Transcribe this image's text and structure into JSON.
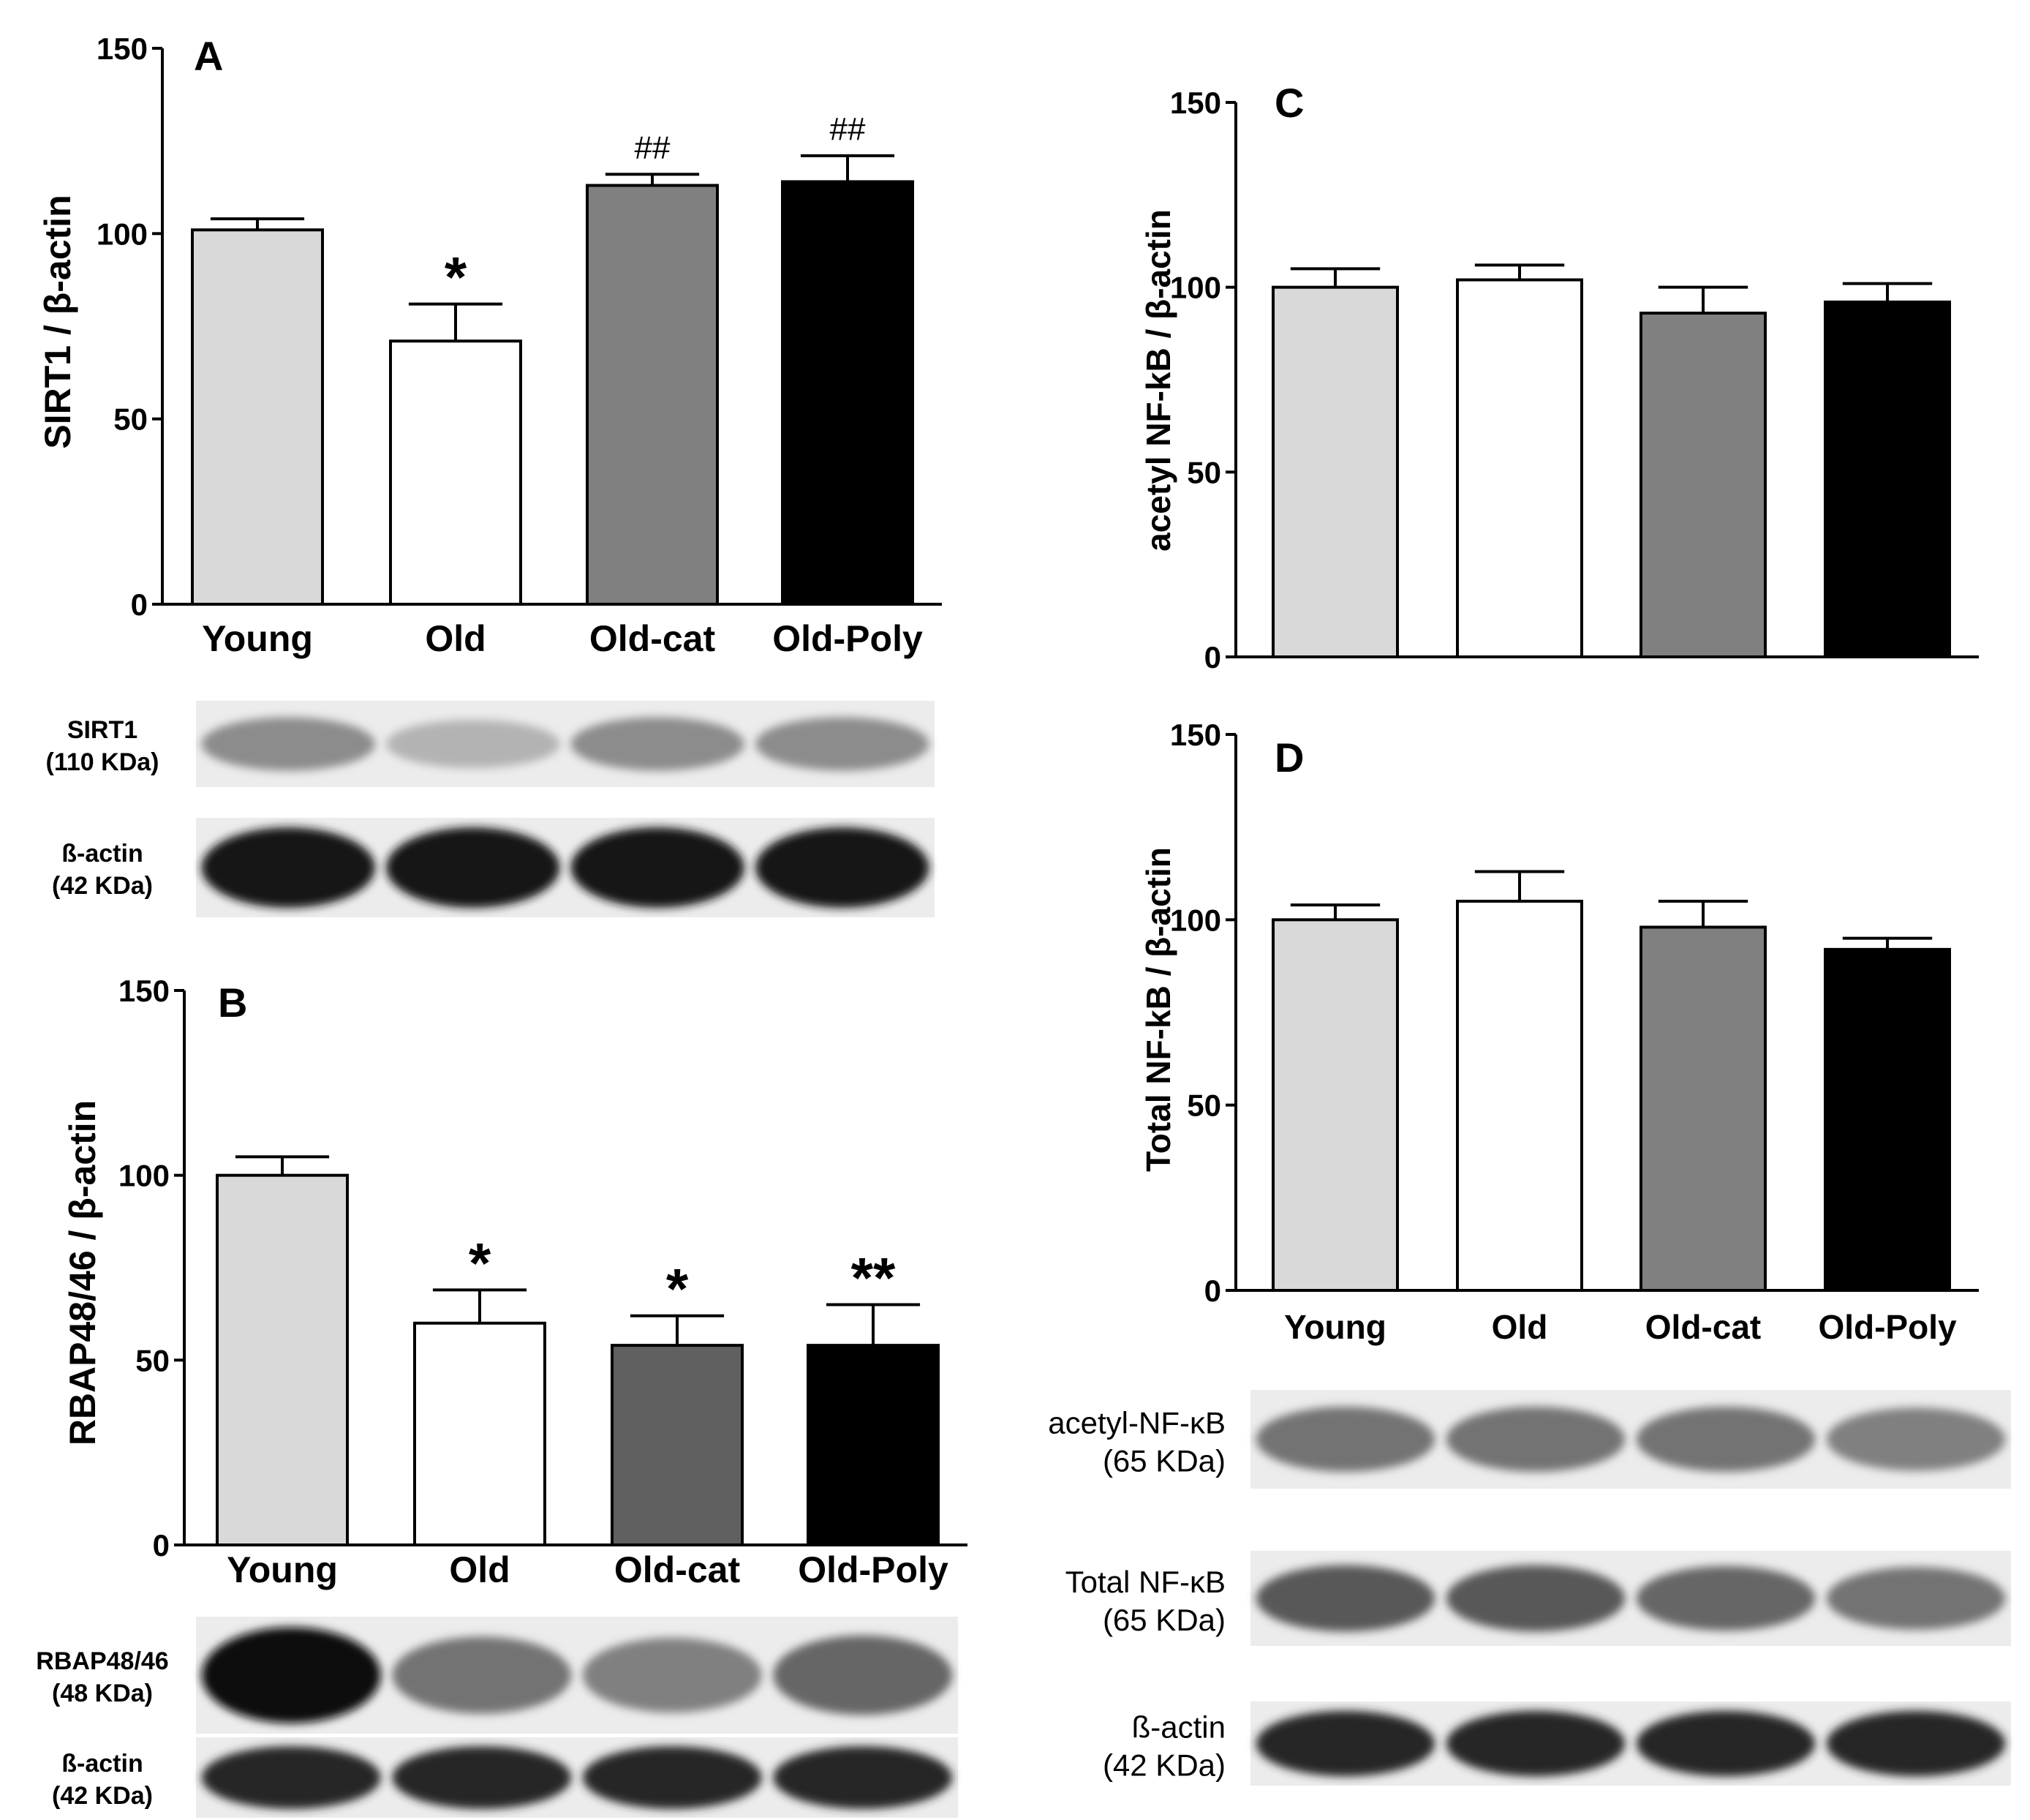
{
  "figure": {
    "background": "#ffffff"
  },
  "chart_data": [
    {
      "type": "bar",
      "panel": "A",
      "ylabel": "SIRT1 / β-actin",
      "ylim": [
        0,
        150
      ],
      "yticks": [
        0,
        50,
        100,
        150
      ],
      "categories": [
        "Young",
        "Old",
        "Old-cat",
        "Old-Poly"
      ],
      "values": [
        101,
        71,
        113,
        114
      ],
      "errors": [
        3,
        10,
        3,
        7
      ],
      "annotations": [
        "",
        "*",
        "##",
        "##"
      ],
      "colors": [
        "#d9d9d9",
        "#ffffff",
        "#808080",
        "#000000"
      ],
      "blots": [
        {
          "label_line1": "SIRT1",
          "label_line2": "(110 KDa)",
          "intensity": [
            0.45,
            0.3,
            0.45,
            0.45
          ]
        },
        {
          "label_line1": "ß-actin",
          "label_line2": "(42 KDa)",
          "intensity": [
            0.92,
            0.92,
            0.92,
            0.92
          ]
        }
      ]
    },
    {
      "type": "bar",
      "panel": "B",
      "ylabel": "RBAP48/46 / β-actin",
      "ylim": [
        0,
        150
      ],
      "yticks": [
        0,
        50,
        100,
        150
      ],
      "categories": [
        "Young",
        "Old",
        "Old-cat",
        "Old-Poly"
      ],
      "values": [
        100,
        60,
        54,
        54
      ],
      "errors": [
        5,
        9,
        8,
        11
      ],
      "annotations": [
        "",
        "*",
        "*",
        "**"
      ],
      "colors": [
        "#d9d9d9",
        "#ffffff",
        "#606060",
        "#000000"
      ],
      "blots": [
        {
          "label_line1": "RBAP48/46",
          "label_line2": "(48 KDa)",
          "intensity": [
            0.95,
            0.55,
            0.5,
            0.6
          ]
        },
        {
          "label_line1": "ß-actin",
          "label_line2": "(42 KDa)",
          "intensity": [
            0.85,
            0.85,
            0.85,
            0.85
          ]
        }
      ]
    },
    {
      "type": "bar",
      "panel": "C",
      "ylabel": "acetyl NF-kB / β-actin",
      "ylim": [
        0,
        150
      ],
      "yticks": [
        0,
        50,
        100,
        150
      ],
      "categories": [
        "Young",
        "Old",
        "Old-cat",
        "Old-Poly"
      ],
      "values": [
        100,
        102,
        93,
        96
      ],
      "errors": [
        5,
        4,
        7,
        5
      ],
      "annotations": [
        "",
        "",
        "",
        ""
      ],
      "colors": [
        "#d9d9d9",
        "#ffffff",
        "#808080",
        "#000000"
      ]
    },
    {
      "type": "bar",
      "panel": "D",
      "ylabel": "Total NF-kB / β-actin",
      "ylim": [
        0,
        150
      ],
      "yticks": [
        0,
        50,
        100,
        150
      ],
      "categories": [
        "Young",
        "Old",
        "Old-cat",
        "Old-Poly"
      ],
      "values": [
        100,
        105,
        98,
        92
      ],
      "errors": [
        4,
        8,
        7,
        3
      ],
      "annotations": [
        "",
        "",
        "",
        ""
      ],
      "colors": [
        "#d9d9d9",
        "#ffffff",
        "#808080",
        "#000000"
      ],
      "blots": [
        {
          "label_line1": "acetyl-NF-κB",
          "label_line2": "(65 KDa)",
          "intensity": [
            0.55,
            0.55,
            0.55,
            0.5
          ]
        },
        {
          "label_line1": "Total NF-κB",
          "label_line2": "(65 KDa)",
          "intensity": [
            0.65,
            0.65,
            0.6,
            0.55
          ]
        },
        {
          "label_line1": "ß-actin",
          "label_line2": "(42 KDa)",
          "intensity": [
            0.85,
            0.85,
            0.85,
            0.85
          ]
        }
      ]
    }
  ]
}
